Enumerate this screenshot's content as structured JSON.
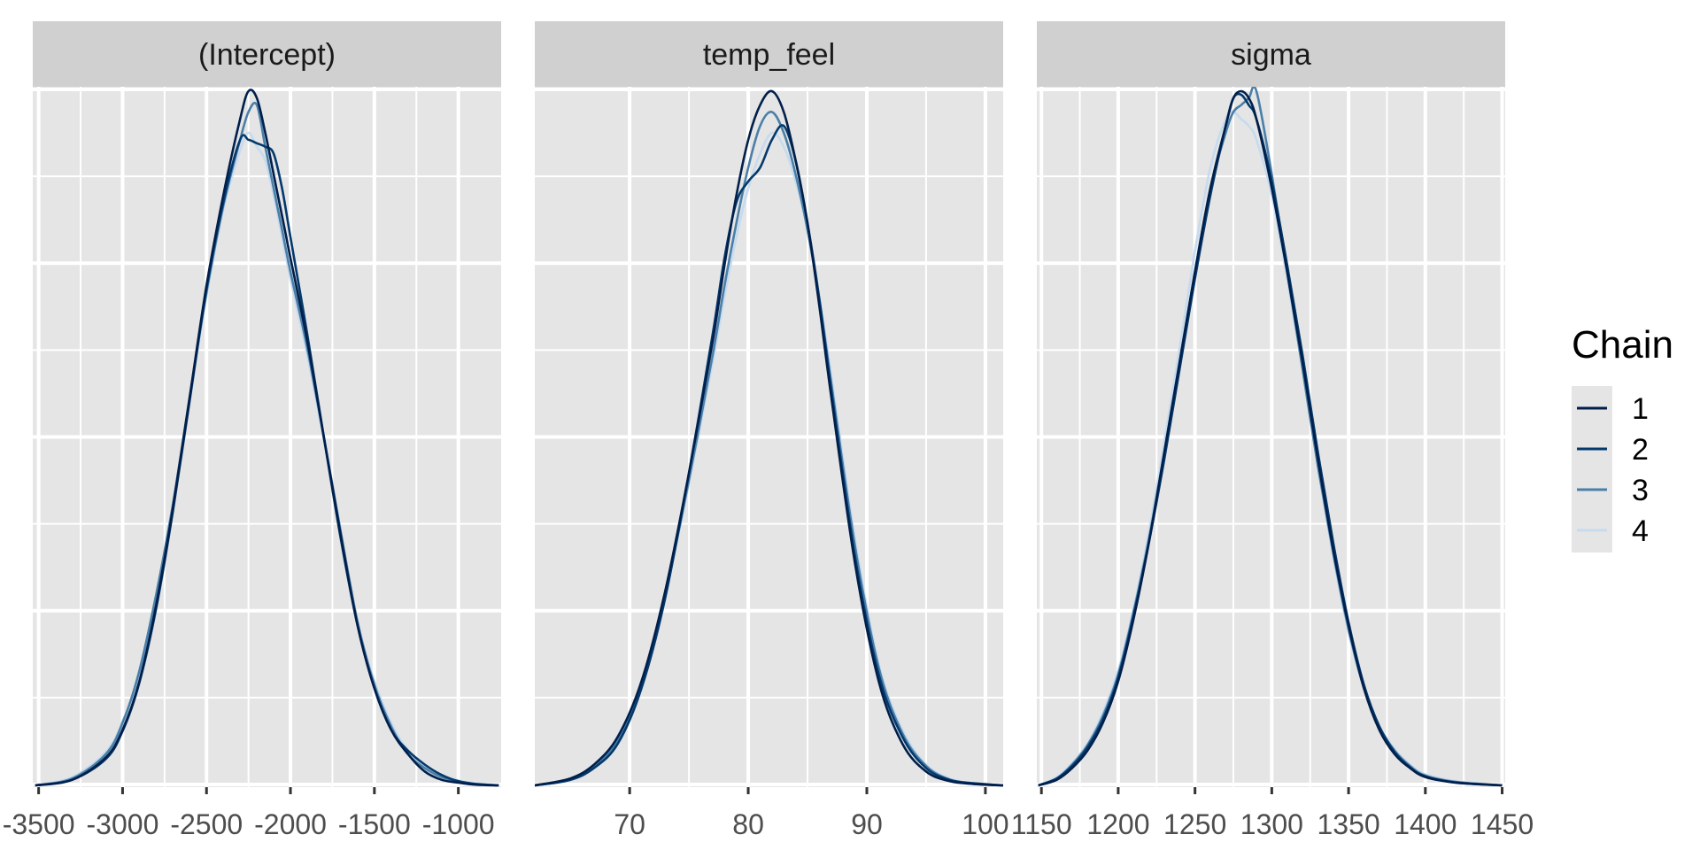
{
  "chart_data": {
    "type": "line",
    "chart_kind": "posterior density overlay per parameter (bayesplot mcmc_dens_overlay)",
    "legend": {
      "title": "Chain",
      "placement": "right",
      "entries": [
        "1",
        "2",
        "3",
        "4"
      ]
    },
    "colors": {
      "panel_background": "#e5e5e5",
      "strip_background": "#d0d0d0",
      "grid": "#ffffff",
      "chains": [
        "#011f4b",
        "#03396c",
        "#4a7fa8",
        "#c6dbef"
      ]
    },
    "grid": true,
    "y_axis_labels_shown": false,
    "panels": [
      {
        "strip": "(Intercept)",
        "xlim": [
          -3535,
          -745
        ],
        "x_ticks": [
          -3500,
          -3000,
          -2500,
          -2000,
          -1500,
          -1000
        ],
        "x_tick_labels": [
          "-3500",
          "-3000",
          "-2500",
          "-2000",
          "-1500",
          "-1000"
        ],
        "series": [
          {
            "chain": "1",
            "x": [
              -3520,
              -3300,
              -3100,
              -3000,
              -2900,
              -2800,
              -2700,
              -2600,
              -2500,
              -2400,
              -2300,
              -2250,
              -2200,
              -2150,
              -2100,
              -2050,
              -2000,
              -1900,
              -1800,
              -1700,
              -1600,
              -1500,
              -1400,
              -1300,
              -1200,
              -1100,
              -1000,
              -900,
              -760
            ],
            "y": [
              0.0,
              0.008,
              0.04,
              0.08,
              0.15,
              0.26,
              0.4,
              0.56,
              0.72,
              0.85,
              0.96,
              1.0,
              0.99,
              0.94,
              0.88,
              0.82,
              0.76,
              0.64,
              0.5,
              0.36,
              0.23,
              0.14,
              0.08,
              0.045,
              0.02,
              0.008,
              0.004,
              0.001,
              0.0
            ]
          },
          {
            "chain": "2",
            "x": [
              -3520,
              -3300,
              -3100,
              -3000,
              -2900,
              -2800,
              -2700,
              -2600,
              -2500,
              -2400,
              -2300,
              -2250,
              -2200,
              -2150,
              -2100,
              -2050,
              -2000,
              -1900,
              -1800,
              -1700,
              -1600,
              -1500,
              -1400,
              -1300,
              -1200,
              -1100,
              -1000,
              -900,
              -760
            ],
            "y": [
              0.0,
              0.008,
              0.038,
              0.078,
              0.148,
              0.255,
              0.395,
              0.555,
              0.715,
              0.84,
              0.93,
              0.93,
              0.925,
              0.92,
              0.91,
              0.86,
              0.79,
              0.65,
              0.5,
              0.355,
              0.23,
              0.14,
              0.08,
              0.05,
              0.03,
              0.015,
              0.006,
              0.002,
              0.0
            ]
          },
          {
            "chain": "3",
            "x": [
              -3520,
              -3300,
              -3100,
              -3000,
              -2900,
              -2800,
              -2700,
              -2600,
              -2500,
              -2400,
              -2300,
              -2250,
              -2200,
              -2150,
              -2100,
              -2050,
              -2000,
              -1900,
              -1800,
              -1700,
              -1600,
              -1500,
              -1400,
              -1300,
              -1200,
              -1100,
              -1000,
              -900,
              -760
            ],
            "y": [
              0.0,
              0.01,
              0.045,
              0.09,
              0.165,
              0.275,
              0.405,
              0.56,
              0.71,
              0.835,
              0.93,
              0.97,
              0.98,
              0.92,
              0.86,
              0.8,
              0.74,
              0.63,
              0.5,
              0.365,
              0.235,
              0.145,
              0.085,
              0.045,
              0.025,
              0.012,
              0.006,
              0.002,
              0.0
            ]
          },
          {
            "chain": "4",
            "x": [
              -3520,
              -3300,
              -3100,
              -3000,
              -2900,
              -2800,
              -2700,
              -2600,
              -2500,
              -2400,
              -2300,
              -2250,
              -2200,
              -2150,
              -2100,
              -2050,
              -2000,
              -1900,
              -1800,
              -1700,
              -1600,
              -1500,
              -1400,
              -1300,
              -1200,
              -1100,
              -1000,
              -900,
              -760
            ],
            "y": [
              0.0,
              0.012,
              0.048,
              0.092,
              0.16,
              0.268,
              0.4,
              0.555,
              0.705,
              0.83,
              0.915,
              0.94,
              0.92,
              0.9,
              0.85,
              0.79,
              0.73,
              0.62,
              0.495,
              0.36,
              0.235,
              0.15,
              0.09,
              0.05,
              0.028,
              0.014,
              0.007,
              0.003,
              0.0
            ]
          }
        ]
      },
      {
        "strip": "temp_feel",
        "xlim": [
          62,
          101.5
        ],
        "x_ticks": [
          70,
          80,
          90,
          100
        ],
        "x_tick_labels": [
          "70",
          "80",
          "90",
          "100"
        ],
        "series": [
          {
            "chain": "1",
            "x": [
              62,
              65,
              67,
              69,
              71,
              73,
              75,
              77,
              78,
              79,
              80,
              81,
              82,
              83,
              84,
              85,
              86,
              87,
              89,
              91,
              93,
              95,
              97,
              99,
              101.5
            ],
            "y": [
              0.0,
              0.01,
              0.03,
              0.07,
              0.15,
              0.28,
              0.45,
              0.64,
              0.75,
              0.85,
              0.93,
              0.98,
              1.0,
              0.97,
              0.9,
              0.81,
              0.69,
              0.56,
              0.32,
              0.15,
              0.06,
              0.02,
              0.006,
              0.002,
              0.0
            ]
          },
          {
            "chain": "2",
            "x": [
              62,
              65,
              67,
              69,
              71,
              73,
              75,
              77,
              78,
              79,
              80,
              81,
              82,
              83,
              84,
              85,
              86,
              87,
              89,
              91,
              93,
              95,
              97,
              99,
              101.5
            ],
            "y": [
              0.0,
              0.008,
              0.025,
              0.06,
              0.14,
              0.27,
              0.45,
              0.65,
              0.76,
              0.84,
              0.87,
              0.89,
              0.93,
              0.95,
              0.9,
              0.81,
              0.7,
              0.57,
              0.33,
              0.16,
              0.07,
              0.025,
              0.008,
              0.003,
              0.0
            ]
          },
          {
            "chain": "3",
            "x": [
              62,
              65,
              67,
              69,
              71,
              73,
              75,
              77,
              78,
              79,
              80,
              81,
              82,
              83,
              84,
              85,
              86,
              87,
              89,
              91,
              93,
              95,
              97,
              99,
              101.5
            ],
            "y": [
              0.0,
              0.008,
              0.028,
              0.065,
              0.145,
              0.275,
              0.44,
              0.62,
              0.72,
              0.81,
              0.89,
              0.95,
              0.97,
              0.94,
              0.88,
              0.8,
              0.7,
              0.58,
              0.345,
              0.17,
              0.075,
              0.028,
              0.008,
              0.002,
              0.0
            ]
          },
          {
            "chain": "4",
            "x": [
              62,
              65,
              67,
              69,
              71,
              73,
              75,
              77,
              78,
              79,
              80,
              81,
              82,
              83,
              84,
              85,
              86,
              87,
              89,
              91,
              93,
              95,
              97,
              99,
              101.5
            ],
            "y": [
              0.0,
              0.01,
              0.03,
              0.07,
              0.15,
              0.275,
              0.435,
              0.61,
              0.705,
              0.79,
              0.86,
              0.91,
              0.94,
              0.92,
              0.87,
              0.8,
              0.705,
              0.59,
              0.355,
              0.175,
              0.08,
              0.03,
              0.01,
              0.003,
              0.0
            ]
          }
        ]
      },
      {
        "strip": "sigma",
        "xlim": [
          1147,
          1452
        ],
        "x_ticks": [
          1150,
          1200,
          1250,
          1300,
          1350,
          1400,
          1450
        ],
        "x_tick_labels": [
          "1150",
          "1200",
          "1250",
          "1300",
          "1350",
          "1400",
          "1450"
        ],
        "series": [
          {
            "chain": "1",
            "x": [
              1148,
              1160,
              1170,
              1180,
              1190,
              1200,
              1210,
              1220,
              1230,
              1240,
              1250,
              1260,
              1270,
              1275,
              1280,
              1285,
              1290,
              1300,
              1310,
              1320,
              1330,
              1340,
              1350,
              1360,
              1370,
              1380,
              1390,
              1400,
              1420,
              1450
            ],
            "y": [
              0.0,
              0.008,
              0.025,
              0.05,
              0.09,
              0.15,
              0.24,
              0.35,
              0.48,
              0.61,
              0.74,
              0.86,
              0.95,
              0.99,
              1.0,
              0.99,
              0.96,
              0.86,
              0.74,
              0.61,
              0.47,
              0.34,
              0.23,
              0.14,
              0.08,
              0.045,
              0.025,
              0.012,
              0.004,
              0.0
            ]
          },
          {
            "chain": "2",
            "x": [
              1148,
              1160,
              1170,
              1180,
              1190,
              1200,
              1210,
              1220,
              1230,
              1240,
              1250,
              1260,
              1270,
              1275,
              1280,
              1285,
              1290,
              1300,
              1310,
              1320,
              1330,
              1340,
              1350,
              1360,
              1370,
              1380,
              1390,
              1400,
              1420,
              1450
            ],
            "y": [
              0.0,
              0.01,
              0.028,
              0.055,
              0.095,
              0.155,
              0.245,
              0.35,
              0.47,
              0.6,
              0.73,
              0.85,
              0.95,
              0.99,
              0.995,
              0.98,
              0.96,
              0.87,
              0.75,
              0.62,
              0.48,
              0.35,
              0.235,
              0.145,
              0.085,
              0.048,
              0.026,
              0.013,
              0.004,
              0.0
            ]
          },
          {
            "chain": "3",
            "x": [
              1148,
              1160,
              1170,
              1180,
              1190,
              1200,
              1210,
              1220,
              1230,
              1240,
              1250,
              1260,
              1270,
              1275,
              1280,
              1285,
              1290,
              1300,
              1310,
              1320,
              1330,
              1340,
              1350,
              1360,
              1370,
              1380,
              1390,
              1400,
              1420,
              1450
            ],
            "y": [
              0.0,
              0.01,
              0.03,
              0.058,
              0.1,
              0.16,
              0.25,
              0.355,
              0.48,
              0.61,
              0.74,
              0.86,
              0.94,
              0.97,
              0.98,
              0.99,
              1.0,
              0.88,
              0.74,
              0.6,
              0.46,
              0.335,
              0.225,
              0.14,
              0.085,
              0.05,
              0.028,
              0.014,
              0.005,
              0.0
            ]
          },
          {
            "chain": "4",
            "x": [
              1148,
              1160,
              1170,
              1180,
              1190,
              1200,
              1210,
              1220,
              1230,
              1240,
              1250,
              1260,
              1270,
              1275,
              1280,
              1285,
              1290,
              1300,
              1310,
              1320,
              1330,
              1340,
              1350,
              1360,
              1370,
              1380,
              1390,
              1400,
              1420,
              1450
            ],
            "y": [
              0.0,
              0.012,
              0.032,
              0.06,
              0.105,
              0.165,
              0.255,
              0.365,
              0.495,
              0.63,
              0.77,
              0.89,
              0.96,
              0.97,
              0.96,
              0.95,
              0.93,
              0.85,
              0.73,
              0.6,
              0.46,
              0.33,
              0.22,
              0.14,
              0.085,
              0.052,
              0.03,
              0.016,
              0.006,
              0.0
            ]
          }
        ]
      }
    ]
  }
}
